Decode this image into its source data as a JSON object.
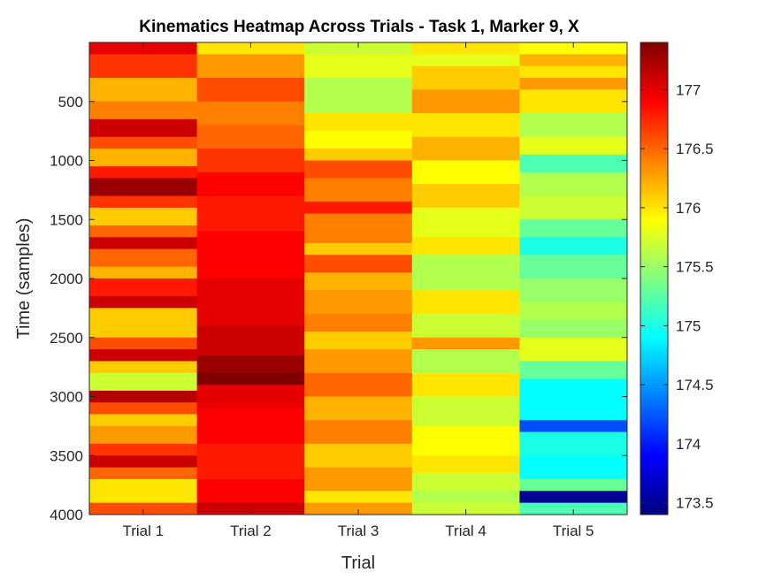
{
  "chart_data": {
    "type": "heatmap",
    "title": "Kinematics Heatmap Across Trials - Task 1, Marker 9, X",
    "xlabel": "Trial",
    "ylabel": "Time (samples)",
    "x_categories": [
      "Trial 1",
      "Trial 2",
      "Trial 3",
      "Trial 4",
      "Trial 5"
    ],
    "y_ticks": [
      500,
      1000,
      1500,
      2000,
      2500,
      3000,
      3500,
      4000
    ],
    "y_tick_labels": [
      "500",
      "1000",
      "1500",
      "2000",
      "2500",
      "3000",
      "3500",
      "4000"
    ],
    "ylim": [
      0,
      4000
    ],
    "y_direction": "reverse",
    "colormap": "jet",
    "clim": [
      173.4,
      177.4
    ],
    "colorbar_ticks": [
      173.5,
      174,
      174.5,
      175,
      175.5,
      176,
      176.5,
      177
    ],
    "colorbar_tick_labels": [
      "173.5",
      "174",
      "174.5",
      "175",
      "175.5",
      "176",
      "176.5",
      "177"
    ],
    "colors": {
      "axis": "#262626",
      "background": "#ffffff"
    },
    "segments": [
      [
        [
          0,
          100,
          177.0
        ],
        [
          100,
          300,
          176.7
        ],
        [
          300,
          500,
          176.2
        ],
        [
          500,
          650,
          176.4
        ],
        [
          650,
          800,
          177.1
        ],
        [
          800,
          900,
          176.6
        ],
        [
          900,
          1050,
          176.2
        ],
        [
          1050,
          1150,
          176.8
        ],
        [
          1150,
          1300,
          177.3
        ],
        [
          1300,
          1400,
          176.7
        ],
        [
          1400,
          1550,
          176.1
        ],
        [
          1550,
          1650,
          176.5
        ],
        [
          1650,
          1750,
          177.1
        ],
        [
          1750,
          1900,
          176.5
        ],
        [
          1900,
          2000,
          176.2
        ],
        [
          2000,
          2150,
          176.8
        ],
        [
          2150,
          2250,
          177.1
        ],
        [
          2250,
          2500,
          176.1
        ],
        [
          2500,
          2600,
          176.6
        ],
        [
          2600,
          2700,
          177.1
        ],
        [
          2700,
          2800,
          176.1
        ],
        [
          2800,
          2950,
          175.7
        ],
        [
          2950,
          3050,
          177.2
        ],
        [
          3050,
          3150,
          176.6
        ],
        [
          3150,
          3250,
          176.1
        ],
        [
          3250,
          3400,
          176.3
        ],
        [
          3400,
          3500,
          176.7
        ],
        [
          3500,
          3600,
          177.1
        ],
        [
          3600,
          3700,
          176.5
        ],
        [
          3700,
          3900,
          176.0
        ],
        [
          3900,
          4000,
          176.6
        ]
      ],
      [
        [
          0,
          100,
          176.0
        ],
        [
          100,
          300,
          176.3
        ],
        [
          300,
          500,
          176.6
        ],
        [
          500,
          700,
          176.4
        ],
        [
          700,
          900,
          176.5
        ],
        [
          900,
          1100,
          176.7
        ],
        [
          1100,
          1300,
          176.9
        ],
        [
          1300,
          1600,
          176.8
        ],
        [
          1600,
          2000,
          176.9
        ],
        [
          2000,
          2400,
          177.0
        ],
        [
          2400,
          2650,
          177.1
        ],
        [
          2650,
          2800,
          177.3
        ],
        [
          2800,
          2900,
          177.4
        ],
        [
          2900,
          3100,
          177.0
        ],
        [
          3100,
          3400,
          176.9
        ],
        [
          3400,
          3700,
          176.8
        ],
        [
          3700,
          3900,
          176.9
        ],
        [
          3900,
          4000,
          177.1
        ]
      ],
      [
        [
          0,
          100,
          175.7
        ],
        [
          100,
          300,
          175.8
        ],
        [
          300,
          600,
          175.6
        ],
        [
          600,
          750,
          176.0
        ],
        [
          750,
          900,
          175.9
        ],
        [
          900,
          1000,
          176.1
        ],
        [
          1000,
          1150,
          176.6
        ],
        [
          1150,
          1350,
          176.4
        ],
        [
          1350,
          1450,
          176.8
        ],
        [
          1450,
          1700,
          176.4
        ],
        [
          1700,
          1800,
          176.1
        ],
        [
          1800,
          1950,
          176.6
        ],
        [
          1950,
          2100,
          176.2
        ],
        [
          2100,
          2300,
          176.3
        ],
        [
          2300,
          2450,
          176.4
        ],
        [
          2450,
          2600,
          176.1
        ],
        [
          2600,
          2800,
          176.3
        ],
        [
          2800,
          3000,
          176.5
        ],
        [
          3000,
          3200,
          176.2
        ],
        [
          3200,
          3400,
          176.4
        ],
        [
          3400,
          3600,
          176.1
        ],
        [
          3600,
          3800,
          176.3
        ],
        [
          3800,
          3900,
          176.0
        ],
        [
          3900,
          4000,
          176.3
        ]
      ],
      [
        [
          0,
          100,
          176.0
        ],
        [
          100,
          200,
          175.8
        ],
        [
          200,
          400,
          176.1
        ],
        [
          400,
          600,
          176.3
        ],
        [
          600,
          800,
          176.0
        ],
        [
          800,
          1000,
          176.2
        ],
        [
          1000,
          1200,
          175.9
        ],
        [
          1200,
          1400,
          176.1
        ],
        [
          1400,
          1650,
          175.8
        ],
        [
          1650,
          1800,
          176.0
        ],
        [
          1800,
          2100,
          175.6
        ],
        [
          2100,
          2300,
          176.0
        ],
        [
          2300,
          2500,
          175.7
        ],
        [
          2500,
          2600,
          176.3
        ],
        [
          2600,
          2800,
          175.6
        ],
        [
          2800,
          3000,
          176.0
        ],
        [
          3000,
          3250,
          175.7
        ],
        [
          3250,
          3500,
          175.9
        ],
        [
          3500,
          3650,
          176.0
        ],
        [
          3650,
          3800,
          175.7
        ],
        [
          3800,
          3900,
          175.6
        ],
        [
          3900,
          4000,
          175.7
        ]
      ],
      [
        [
          0,
          100,
          175.9
        ],
        [
          100,
          200,
          176.2
        ],
        [
          200,
          300,
          176.0
        ],
        [
          300,
          400,
          176.3
        ],
        [
          400,
          600,
          176.0
        ],
        [
          600,
          800,
          175.6
        ],
        [
          800,
          950,
          175.8
        ],
        [
          950,
          1100,
          175.2
        ],
        [
          1100,
          1300,
          175.6
        ],
        [
          1300,
          1500,
          175.7
        ],
        [
          1500,
          1650,
          175.3
        ],
        [
          1650,
          1800,
          175.0
        ],
        [
          1800,
          2000,
          175.3
        ],
        [
          2000,
          2200,
          175.5
        ],
        [
          2200,
          2350,
          175.6
        ],
        [
          2350,
          2500,
          175.5
        ],
        [
          2500,
          2700,
          175.8
        ],
        [
          2700,
          2850,
          175.3
        ],
        [
          2850,
          3200,
          174.9
        ],
        [
          3200,
          3300,
          174.2
        ],
        [
          3300,
          3500,
          175.0
        ],
        [
          3500,
          3700,
          174.9
        ],
        [
          3700,
          3800,
          175.3
        ],
        [
          3800,
          3900,
          173.5
        ],
        [
          3900,
          4000,
          175.2
        ]
      ]
    ]
  }
}
